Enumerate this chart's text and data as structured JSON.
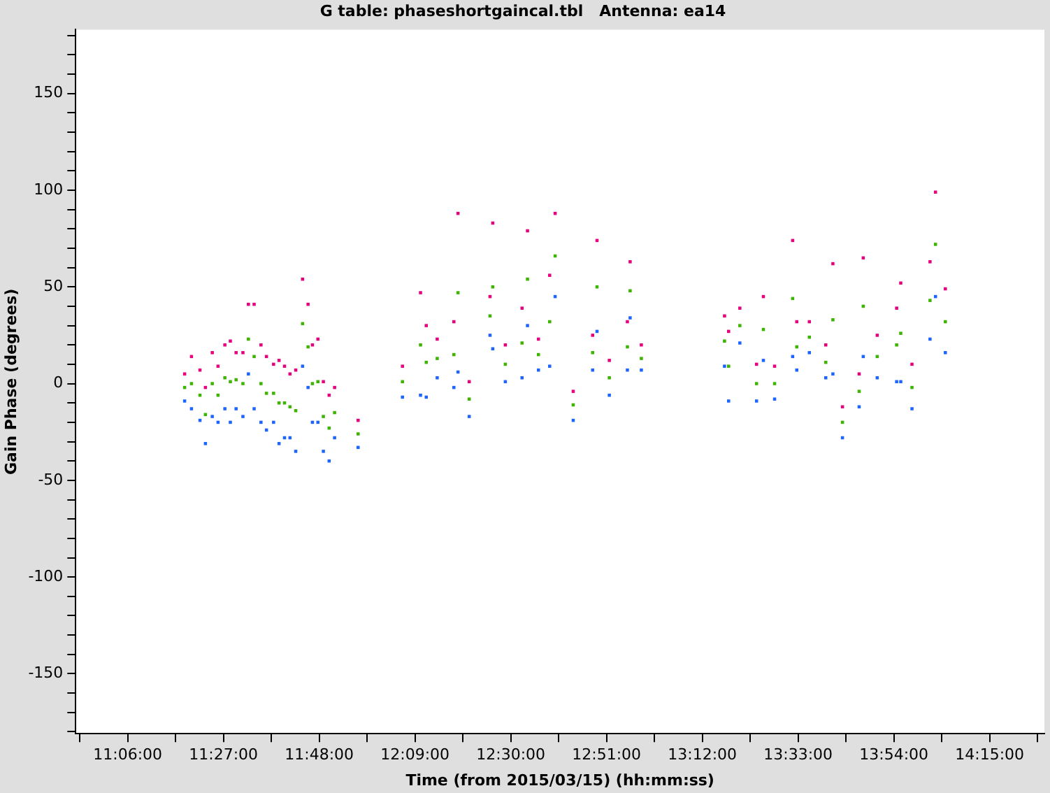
{
  "chart_data": {
    "type": "scatter",
    "title": "G table: phaseshortgaincal.tbl   Antenna: ea14",
    "xlabel": "Time (from 2015/03/15) (hh:mm:ss)",
    "ylabel": "Gain Phase (degrees)",
    "xlim": [
      10.91,
      14.45
    ],
    "ylim": [
      -181,
      183
    ],
    "xticks": [
      {
        "value": 10.925,
        "label": null
      },
      {
        "value": 11.1,
        "label": "11:06:00"
      },
      {
        "value": 11.275,
        "label": null
      },
      {
        "value": 11.45,
        "label": "11:27:00"
      },
      {
        "value": 11.625,
        "label": null
      },
      {
        "value": 11.8,
        "label": "11:48:00"
      },
      {
        "value": 11.975,
        "label": null
      },
      {
        "value": 12.15,
        "label": "12:09:00"
      },
      {
        "value": 12.325,
        "label": null
      },
      {
        "value": 12.5,
        "label": "12:30:00"
      },
      {
        "value": 12.675,
        "label": null
      },
      {
        "value": 12.85,
        "label": "12:51:00"
      },
      {
        "value": 13.025,
        "label": null
      },
      {
        "value": 13.2,
        "label": "13:12:00"
      },
      {
        "value": 13.375,
        "label": null
      },
      {
        "value": 13.55,
        "label": "13:33:00"
      },
      {
        "value": 13.725,
        "label": null
      },
      {
        "value": 13.9,
        "label": "13:54:00"
      },
      {
        "value": 14.075,
        "label": null
      },
      {
        "value": 14.25,
        "label": "14:15:00"
      },
      {
        "value": 14.425,
        "label": null
      }
    ],
    "yticks": [
      {
        "value": -180,
        "label": null
      },
      {
        "value": -170,
        "label": null
      },
      {
        "value": -160,
        "label": null
      },
      -150,
      {
        "value": -140,
        "label": null
      },
      {
        "value": -130,
        "label": null
      },
      {
        "value": -120,
        "label": null
      },
      {
        "value": -110,
        "label": null
      },
      -100,
      {
        "value": -90,
        "label": null
      },
      {
        "value": -80,
        "label": null
      },
      {
        "value": -70,
        "label": null
      },
      {
        "value": -60,
        "label": null
      },
      -50,
      {
        "value": -40,
        "label": null
      },
      {
        "value": -30,
        "label": null
      },
      {
        "value": -20,
        "label": null
      },
      {
        "value": -10,
        "label": null
      },
      0,
      {
        "value": 10,
        "label": null
      },
      {
        "value": 20,
        "label": null
      },
      {
        "value": 30,
        "label": null
      },
      {
        "value": 40,
        "label": null
      },
      50,
      {
        "value": 60,
        "label": null
      },
      {
        "value": 70,
        "label": null
      },
      {
        "value": 80,
        "label": null
      },
      {
        "value": 90,
        "label": null
      },
      100,
      {
        "value": 110,
        "label": null
      },
      {
        "value": 120,
        "label": null
      },
      {
        "value": 130,
        "label": null
      },
      {
        "value": 140,
        "label": null
      },
      150,
      {
        "value": 160,
        "label": null
      },
      {
        "value": 170,
        "label": null
      },
      {
        "value": 180,
        "label": null
      }
    ],
    "marker": "square",
    "grid": false,
    "legend": false,
    "series": [
      {
        "color": "#e6007e",
        "x": [
          11.308,
          11.333,
          11.364,
          11.384,
          11.409,
          11.43,
          11.455,
          11.475,
          11.496,
          11.521,
          11.541,
          11.562,
          11.587,
          11.607,
          11.633,
          11.653,
          11.673,
          11.693,
          11.714,
          11.739,
          11.759,
          11.775,
          11.795,
          11.815,
          11.836,
          11.856,
          11.942,
          12.104,
          12.17,
          12.191,
          12.231,
          12.292,
          12.307,
          12.348,
          12.424,
          12.434,
          12.48,
          12.541,
          12.561,
          12.601,
          12.642,
          12.662,
          12.728,
          12.799,
          12.815,
          12.86,
          12.926,
          12.936,
          12.977,
          13.281,
          13.296,
          13.337,
          13.398,
          13.423,
          13.464,
          13.53,
          13.545,
          13.591,
          13.651,
          13.677,
          13.712,
          13.773,
          13.788,
          13.839,
          13.91,
          13.925,
          13.966,
          14.032,
          14.052,
          14.088
        ],
        "values": [
          5,
          14,
          7,
          -2,
          16,
          9,
          20,
          22,
          16,
          16,
          41,
          41,
          20,
          14,
          10,
          12,
          9,
          5,
          7,
          54,
          41,
          20,
          23,
          1,
          -6,
          -2,
          -19,
          9,
          47,
          30,
          23,
          32,
          88,
          1,
          45,
          83,
          20,
          39,
          79,
          23,
          56,
          88,
          -4,
          25,
          74,
          12,
          32,
          63,
          20,
          35,
          27,
          39,
          10,
          45,
          9,
          74,
          32,
          32,
          20,
          62,
          -12,
          5,
          65,
          25,
          39,
          52,
          10,
          63,
          99,
          49
        ]
      },
      {
        "color": "#3cb400",
        "x": [
          11.308,
          11.333,
          11.364,
          11.384,
          11.409,
          11.43,
          11.455,
          11.475,
          11.496,
          11.521,
          11.541,
          11.562,
          11.587,
          11.607,
          11.633,
          11.653,
          11.673,
          11.693,
          11.714,
          11.739,
          11.759,
          11.775,
          11.795,
          11.815,
          11.836,
          11.856,
          11.942,
          12.104,
          12.17,
          12.191,
          12.231,
          12.292,
          12.307,
          12.348,
          12.424,
          12.434,
          12.48,
          12.541,
          12.561,
          12.601,
          12.642,
          12.662,
          12.728,
          12.799,
          12.815,
          12.86,
          12.926,
          12.936,
          12.977,
          13.281,
          13.296,
          13.337,
          13.398,
          13.423,
          13.464,
          13.53,
          13.545,
          13.591,
          13.651,
          13.677,
          13.712,
          13.773,
          13.788,
          13.839,
          13.91,
          13.925,
          13.966,
          14.032,
          14.052,
          14.088
        ],
        "values": [
          -2,
          0,
          -6,
          -16,
          0,
          -6,
          3,
          1,
          2,
          0,
          23,
          14,
          0,
          -5,
          -5,
          -10,
          -10,
          -12,
          -14,
          31,
          19,
          0,
          1,
          -17,
          -23,
          -15,
          -26,
          1,
          20,
          11,
          13,
          15,
          47,
          -8,
          35,
          50,
          10,
          21,
          54,
          15,
          32,
          66,
          -11,
          16,
          50,
          3,
          19,
          48,
          13,
          22,
          9,
          30,
          0,
          28,
          0,
          44,
          19,
          24,
          11,
          33,
          -20,
          -4,
          40,
          14,
          20,
          26,
          -2,
          43,
          72,
          32
        ]
      },
      {
        "color": "#1e64ff",
        "x": [
          11.308,
          11.333,
          11.364,
          11.384,
          11.409,
          11.43,
          11.455,
          11.475,
          11.496,
          11.521,
          11.541,
          11.562,
          11.587,
          11.607,
          11.633,
          11.653,
          11.673,
          11.693,
          11.714,
          11.739,
          11.759,
          11.775,
          11.795,
          11.815,
          11.836,
          11.856,
          11.942,
          12.104,
          12.17,
          12.191,
          12.231,
          12.292,
          12.307,
          12.348,
          12.424,
          12.434,
          12.48,
          12.541,
          12.561,
          12.601,
          12.642,
          12.662,
          12.728,
          12.799,
          12.815,
          12.86,
          12.926,
          12.936,
          12.977,
          13.281,
          13.296,
          13.337,
          13.398,
          13.423,
          13.464,
          13.53,
          13.545,
          13.591,
          13.651,
          13.677,
          13.712,
          13.773,
          13.788,
          13.839,
          13.91,
          13.925,
          13.966,
          14.032,
          14.052,
          14.088
        ],
        "values": [
          -9,
          -13,
          -19,
          -31,
          -17,
          -20,
          -13,
          -20,
          -13,
          -17,
          5,
          -13,
          -20,
          -24,
          -20,
          -31,
          -28,
          -28,
          -35,
          9,
          -2,
          -20,
          -20,
          -35,
          -40,
          -28,
          -33,
          -7,
          -6,
          -7,
          3,
          -2,
          6,
          -17,
          25,
          18,
          1,
          3,
          30,
          7,
          9,
          45,
          -19,
          7,
          27,
          -6,
          7,
          34,
          7,
          9,
          -9,
          21,
          -9,
          12,
          -8,
          14,
          7,
          16,
          3,
          5,
          -28,
          -12,
          14,
          3,
          1,
          1,
          -13,
          23,
          45,
          16
        ]
      }
    ]
  }
}
